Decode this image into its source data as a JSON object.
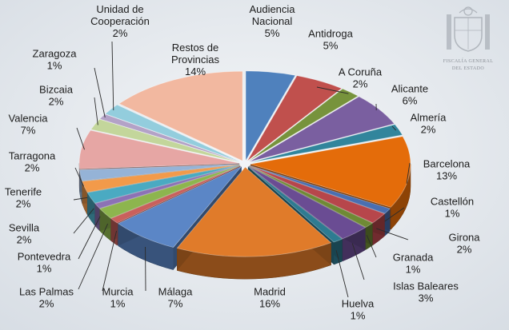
{
  "emblem": {
    "line1": "FISCALÍA GENERAL",
    "line2": "DEL ESTADO"
  },
  "chart_data": {
    "type": "pie",
    "title": "",
    "unit": "%",
    "slices": [
      {
        "label": [
          "Audiencia",
          "Nacional"
        ],
        "value": 5,
        "text": "5%",
        "color": "#4f81bd"
      },
      {
        "label": [
          "Antidroga"
        ],
        "value": 5,
        "text": "5%",
        "color": "#c0504d"
      },
      {
        "label": [
          "A Coruña"
        ],
        "value": 2,
        "text": "2%",
        "color": "#77933c"
      },
      {
        "label": [
          "Alicante"
        ],
        "value": 6,
        "text": "6%",
        "color": "#7a5fa0"
      },
      {
        "label": [
          "Almería"
        ],
        "value": 2,
        "text": "2%",
        "color": "#31859c"
      },
      {
        "label": [
          "Barcelona"
        ],
        "value": 13,
        "text": "13%",
        "color": "#e46c0a"
      },
      {
        "label": [
          "Castellón"
        ],
        "value": 1,
        "text": "1%",
        "color": "#4a6fb1"
      },
      {
        "label": [
          "Girona"
        ],
        "value": 2,
        "text": "2%",
        "color": "#b7464b"
      },
      {
        "label": [
          "Granada"
        ],
        "value": 1,
        "text": "1%",
        "color": "#6f8a35"
      },
      {
        "label": [
          "Islas Baleares"
        ],
        "value": 3,
        "text": "3%",
        "color": "#6a4c93"
      },
      {
        "label": [
          "Huelva"
        ],
        "value": 1,
        "text": "1%",
        "color": "#2e7b91"
      },
      {
        "label": [
          "Madrid"
        ],
        "value": 16,
        "text": "16%",
        "color": "#e07b2a"
      },
      {
        "label": [
          "Málaga"
        ],
        "value": 7,
        "text": "7%",
        "color": "#5b86c6"
      },
      {
        "label": [
          "Murcia"
        ],
        "value": 1,
        "text": "1%",
        "color": "#c9605c"
      },
      {
        "label": [
          "Las Palmas"
        ],
        "value": 2,
        "text": "2%",
        "color": "#8db54e"
      },
      {
        "label": [
          "Pontevedra"
        ],
        "value": 1,
        "text": "1%",
        "color": "#8c72b5"
      },
      {
        "label": [
          "Sevilla"
        ],
        "value": 2,
        "text": "2%",
        "color": "#4aaac2"
      },
      {
        "label": [
          "Tenerife"
        ],
        "value": 2,
        "text": "2%",
        "color": "#f29a4a"
      },
      {
        "label": [
          "Tarragona"
        ],
        "value": 2,
        "text": "2%",
        "color": "#95b3d7"
      },
      {
        "label": [
          "Valencia"
        ],
        "value": 7,
        "text": "7%",
        "color": "#e6a6a4"
      },
      {
        "label": [
          "Bizcaia"
        ],
        "value": 2,
        "text": "2%",
        "color": "#c3d69b"
      },
      {
        "label": [
          "Zaragoza"
        ],
        "value": 1,
        "text": "1%",
        "color": "#b3a2c7"
      },
      {
        "label": [
          "Unidad de",
          "Cooperación"
        ],
        "value": 2,
        "text": "2%",
        "color": "#93cddd"
      },
      {
        "label": [
          "Restos de",
          "Provincias"
        ],
        "value": 14,
        "text": "14%",
        "color": "#f2b8a0"
      }
    ]
  }
}
